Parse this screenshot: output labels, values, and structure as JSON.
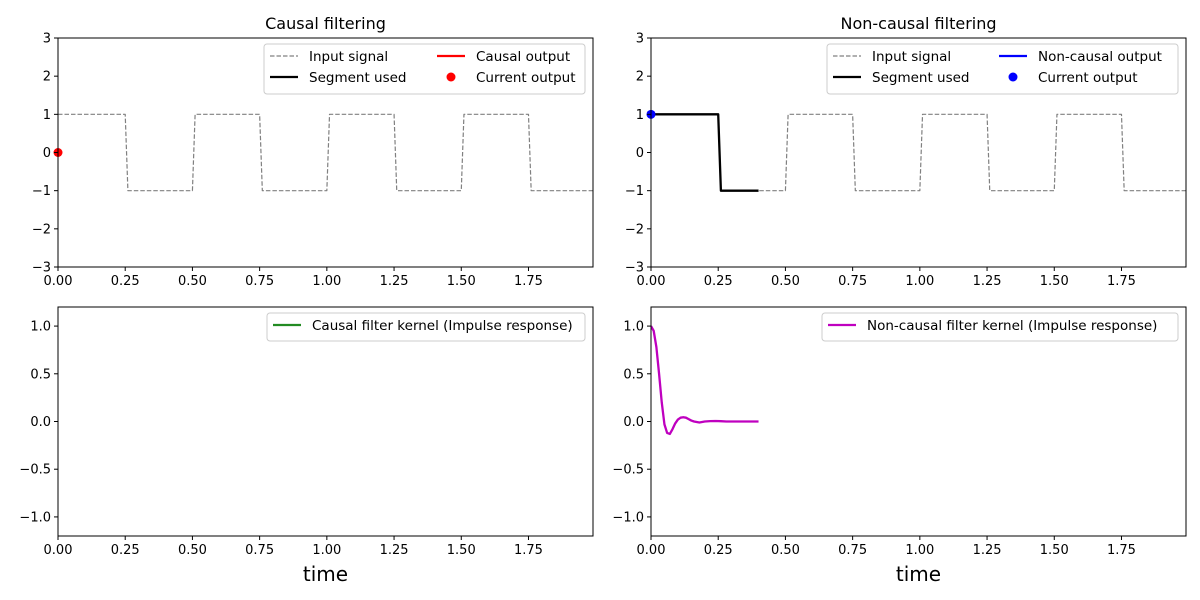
{
  "chart_data": [
    {
      "type": "line",
      "panel": "causal-signal",
      "title": "Causal filtering",
      "xlabel": "",
      "ylabel": "",
      "xlim": [
        0,
        1.99
      ],
      "ylim": [
        -3,
        3
      ],
      "xticks": [
        0,
        0.25,
        0.5,
        0.75,
        1.0,
        1.25,
        1.5,
        1.75
      ],
      "xtick_labels": [
        "0.00",
        "0.25",
        "0.50",
        "0.75",
        "1.00",
        "1.25",
        "1.50",
        "1.75"
      ],
      "yticks": [
        -3,
        -2,
        -1,
        0,
        1,
        2,
        3
      ],
      "ytick_labels": [
        "−3",
        "−2",
        "−1",
        "0",
        "1",
        "2",
        "3"
      ],
      "legend_position": "top-right",
      "legend_columns": 2,
      "series": [
        {
          "name": "Input signal",
          "style": "dashed",
          "color": "#808080",
          "x": [
            0,
            0.25,
            0.26,
            0.5,
            0.51,
            0.75,
            0.76,
            1.0,
            1.01,
            1.25,
            1.26,
            1.5,
            1.51,
            1.75,
            1.76,
            1.99
          ],
          "y": [
            1,
            1,
            -1,
            -1,
            1,
            1,
            -1,
            -1,
            1,
            1,
            -1,
            -1,
            1,
            1,
            -1,
            -1
          ]
        },
        {
          "name": "Segment used",
          "style": "solid",
          "color": "#000000",
          "x": [],
          "y": []
        },
        {
          "name": "Causal output",
          "style": "solid",
          "color": "#ff0000",
          "x": [],
          "y": []
        },
        {
          "name": "Current output",
          "style": "marker",
          "color": "#ff0000",
          "x": [
            0
          ],
          "y": [
            0
          ]
        }
      ]
    },
    {
      "type": "line",
      "panel": "noncausal-signal",
      "title": "Non-causal filtering",
      "xlabel": "",
      "ylabel": "",
      "xlim": [
        0,
        1.99
      ],
      "ylim": [
        -3,
        3
      ],
      "xticks": [
        0,
        0.25,
        0.5,
        0.75,
        1.0,
        1.25,
        1.5,
        1.75
      ],
      "xtick_labels": [
        "0.00",
        "0.25",
        "0.50",
        "0.75",
        "1.00",
        "1.25",
        "1.50",
        "1.75"
      ],
      "yticks": [
        -3,
        -2,
        -1,
        0,
        1,
        2,
        3
      ],
      "ytick_labels": [
        "−3",
        "−2",
        "−1",
        "0",
        "1",
        "2",
        "3"
      ],
      "legend_position": "top-right",
      "legend_columns": 2,
      "series": [
        {
          "name": "Input signal",
          "style": "dashed",
          "color": "#808080",
          "x": [
            0,
            0.25,
            0.26,
            0.5,
            0.51,
            0.75,
            0.76,
            1.0,
            1.01,
            1.25,
            1.26,
            1.5,
            1.51,
            1.75,
            1.76,
            1.99
          ],
          "y": [
            1,
            1,
            -1,
            -1,
            1,
            1,
            -1,
            -1,
            1,
            1,
            -1,
            -1,
            1,
            1,
            -1,
            -1
          ]
        },
        {
          "name": "Segment used",
          "style": "solid",
          "color": "#000000",
          "x": [
            0,
            0.25,
            0.26,
            0.4
          ],
          "y": [
            1,
            1,
            -1,
            -1
          ]
        },
        {
          "name": "Non-causal output",
          "style": "solid",
          "color": "#0000ff",
          "x": [],
          "y": []
        },
        {
          "name": "Current output",
          "style": "marker",
          "color": "#0000ff",
          "x": [
            0
          ],
          "y": [
            1
          ]
        }
      ]
    },
    {
      "type": "line",
      "panel": "causal-kernel",
      "title": "",
      "xlabel": "time",
      "ylabel": "",
      "xlim": [
        0,
        1.99
      ],
      "ylim": [
        -1.2,
        1.2
      ],
      "xticks": [
        0,
        0.25,
        0.5,
        0.75,
        1.0,
        1.25,
        1.5,
        1.75
      ],
      "xtick_labels": [
        "0.00",
        "0.25",
        "0.50",
        "0.75",
        "1.00",
        "1.25",
        "1.50",
        "1.75"
      ],
      "yticks": [
        -1.0,
        -0.5,
        0.0,
        0.5,
        1.0
      ],
      "ytick_labels": [
        "−1.0",
        "−0.5",
        "0.0",
        "0.5",
        "1.0"
      ],
      "legend_position": "top-right",
      "legend_columns": 1,
      "series": [
        {
          "name": "Causal filter kernel (Impulse response)",
          "style": "solid",
          "color": "#228b22",
          "x": [],
          "y": []
        }
      ]
    },
    {
      "type": "line",
      "panel": "noncausal-kernel",
      "title": "",
      "xlabel": "time",
      "ylabel": "",
      "xlim": [
        0,
        1.99
      ],
      "ylim": [
        -1.2,
        1.2
      ],
      "xticks": [
        0,
        0.25,
        0.5,
        0.75,
        1.0,
        1.25,
        1.5,
        1.75
      ],
      "xtick_labels": [
        "0.00",
        "0.25",
        "0.50",
        "0.75",
        "1.00",
        "1.25",
        "1.50",
        "1.75"
      ],
      "yticks": [
        -1.0,
        -0.5,
        0.0,
        0.5,
        1.0
      ],
      "ytick_labels": [
        "−1.0",
        "−0.5",
        "0.0",
        "0.5",
        "1.0"
      ],
      "legend_position": "top-right",
      "legend_columns": 1,
      "series": [
        {
          "name": "Non-causal filter kernel (Impulse response)",
          "style": "solid",
          "color": "#bf00bf",
          "x": [
            0,
            0.01,
            0.02,
            0.03,
            0.04,
            0.05,
            0.06,
            0.07,
            0.08,
            0.09,
            0.1,
            0.11,
            0.12,
            0.13,
            0.14,
            0.15,
            0.16,
            0.17,
            0.18,
            0.19,
            0.2,
            0.22,
            0.24,
            0.26,
            0.28,
            0.3,
            0.33,
            0.36,
            0.4
          ],
          "y": [
            1.0,
            0.95,
            0.78,
            0.5,
            0.2,
            -0.03,
            -0.12,
            -0.13,
            -0.08,
            -0.02,
            0.02,
            0.04,
            0.045,
            0.04,
            0.025,
            0.01,
            0.0,
            -0.005,
            -0.01,
            -0.005,
            0.0,
            0.004,
            0.005,
            0.003,
            0.0,
            0.0,
            0.0,
            0.0,
            0.0
          ]
        }
      ]
    }
  ]
}
